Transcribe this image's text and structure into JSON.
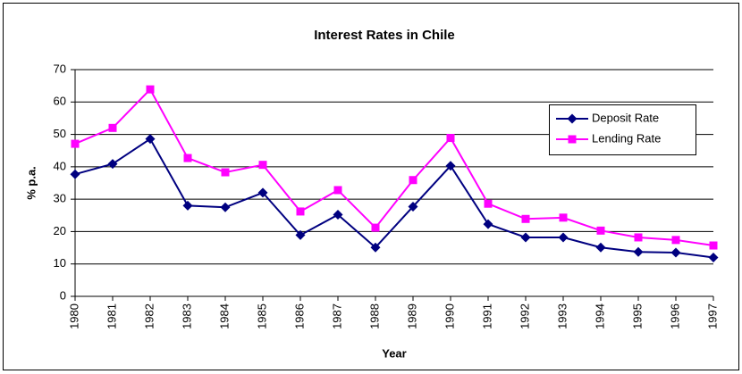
{
  "chart_data": {
    "type": "line",
    "title": "Interest Rates in Chile",
    "x_label": "Year",
    "y_label": "% p.a.",
    "categories": [
      "1980",
      "1981",
      "1982",
      "1983",
      "1984",
      "1985",
      "1986",
      "1987",
      "1988",
      "1989",
      "1990",
      "1991",
      "1992",
      "1993",
      "1994",
      "1995",
      "1996",
      "1997"
    ],
    "series": [
      {
        "name": "Deposit Rate",
        "color": "#000080",
        "marker": "diamond",
        "values": [
          37.7,
          40.9,
          48.6,
          28.0,
          27.5,
          32.0,
          18.9,
          25.2,
          15.1,
          27.7,
          40.3,
          22.3,
          18.2,
          18.2,
          15.1,
          13.7,
          13.5,
          12.0
        ]
      },
      {
        "name": "Lending Rate",
        "color": "#ff00ff",
        "marker": "square",
        "values": [
          47.1,
          52.0,
          63.9,
          42.7,
          38.3,
          40.6,
          26.2,
          32.8,
          21.2,
          35.9,
          48.9,
          28.6,
          23.9,
          24.3,
          20.3,
          18.2,
          17.4,
          15.7
        ]
      }
    ],
    "ylim": [
      0,
      70
    ],
    "yticks": [
      0,
      10,
      20,
      30,
      40,
      50,
      60,
      70
    ],
    "grid": true,
    "legend": "upper right"
  }
}
